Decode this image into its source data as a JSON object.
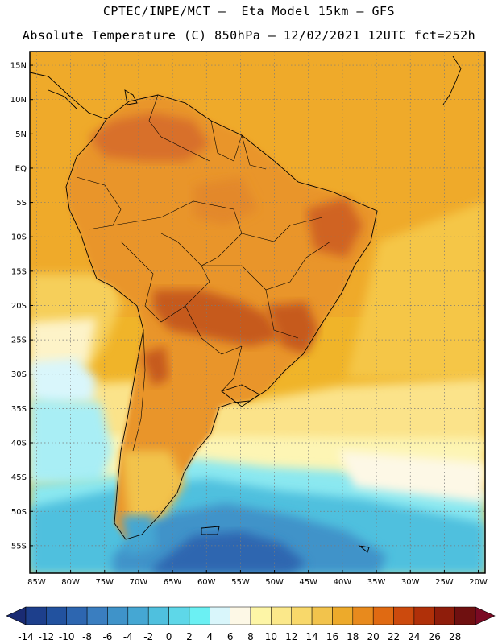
{
  "title": {
    "line1": "CPTEC/INPE/MCT –  Eta Model 15km – GFS",
    "line2": "Absolute Temperature (C) 850hPa – 12/02/2021 12UTC fct=252h"
  },
  "map": {
    "extent": {
      "lon_min": -86,
      "lon_max": -19,
      "lat_min": -59,
      "lat_max": 17
    },
    "lat_labels": [
      "15N",
      "10N",
      "5N",
      "EQ",
      "5S",
      "10S",
      "15S",
      "20S",
      "25S",
      "30S",
      "35S",
      "40S",
      "45S",
      "50S",
      "55S"
    ],
    "lat_values": [
      15,
      10,
      5,
      0,
      -5,
      -10,
      -15,
      -20,
      -25,
      -30,
      -35,
      -40,
      -45,
      -50,
      -55
    ],
    "lon_labels": [
      "85W",
      "80W",
      "75W",
      "70W",
      "65W",
      "60W",
      "55W",
      "50W",
      "45W",
      "40W",
      "35W",
      "30W",
      "25W",
      "20W"
    ],
    "lon_values": [
      -85,
      -80,
      -75,
      -70,
      -65,
      -60,
      -55,
      -50,
      -45,
      -40,
      -35,
      -30,
      -25,
      -20
    ]
  },
  "colorbar": {
    "labels": [
      "-14",
      "-12",
      "-10",
      "-8",
      "-6",
      "-4",
      "-2",
      "0",
      "2",
      "4",
      "6",
      "8",
      "10",
      "12",
      "14",
      "16",
      "18",
      "20",
      "22",
      "24",
      "26",
      "28"
    ],
    "colors": [
      "#1d3f8c",
      "#22529f",
      "#2d66b0",
      "#3a7ec0",
      "#3f93c9",
      "#45a7d3",
      "#4fc0de",
      "#5ed7e8",
      "#6bf0f3",
      "#d9f6fb",
      "#fdf8e6",
      "#fdf5a6",
      "#fbe88a",
      "#f8d86a",
      "#f2c34c",
      "#edaa2b",
      "#e88a1d",
      "#e06a12",
      "#cc4a0d",
      "#b03009",
      "#8f1d0b",
      "#6f1010"
    ],
    "low_color": "#1a2b73",
    "high_color": "#7a0a24"
  },
  "field_colors": {
    "ocean_warm": "#f0b429",
    "ocean_mild": "#fbe183",
    "ocean_cool": "#fdf4c8",
    "cold_1": "#d9f6fb",
    "cold_2": "#6bf0f3",
    "cold_3": "#4fc0de",
    "cold_4": "#3a7ec0",
    "land_warm": "#e9952c",
    "land_hot": "#d06322"
  }
}
